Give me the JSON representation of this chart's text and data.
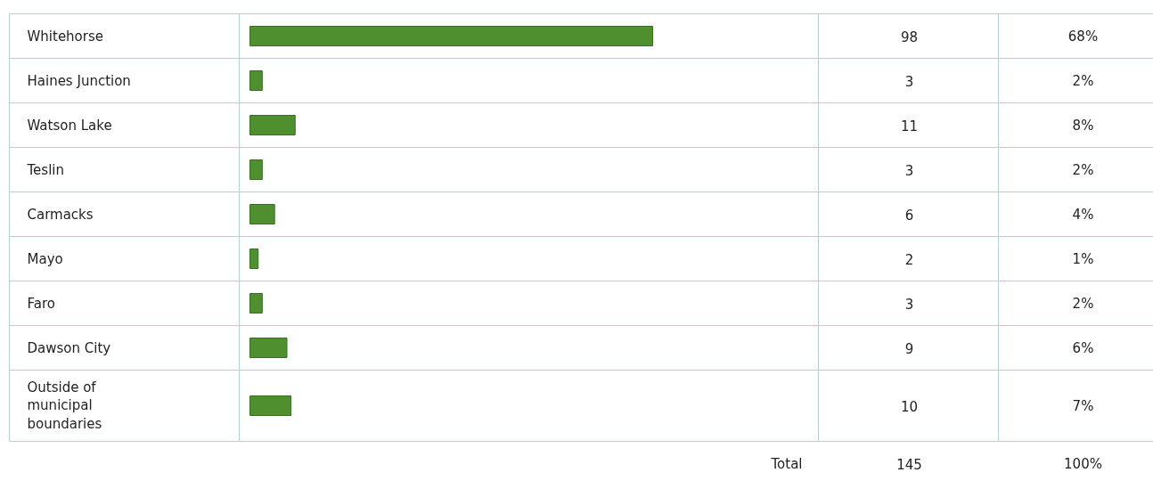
{
  "chart_data": {
    "type": "bar",
    "orientation": "horizontal",
    "categories": [
      "Whitehorse",
      "Haines Junction",
      "Watson Lake",
      "Teslin",
      "Carmacks",
      "Mayo",
      "Faro",
      "Dawson City",
      "Outside of\nmunicipal\nboundaries"
    ],
    "values": [
      98,
      3,
      11,
      3,
      6,
      2,
      3,
      9,
      10
    ],
    "color": "#4f8f2f",
    "data_labels": true,
    "annotations": [
      "68%",
      "2%",
      "8%",
      "2%",
      "4%",
      "1%",
      "2%",
      "6%",
      "7%",
      "Total",
      "145",
      "100%"
    ]
  }
}
